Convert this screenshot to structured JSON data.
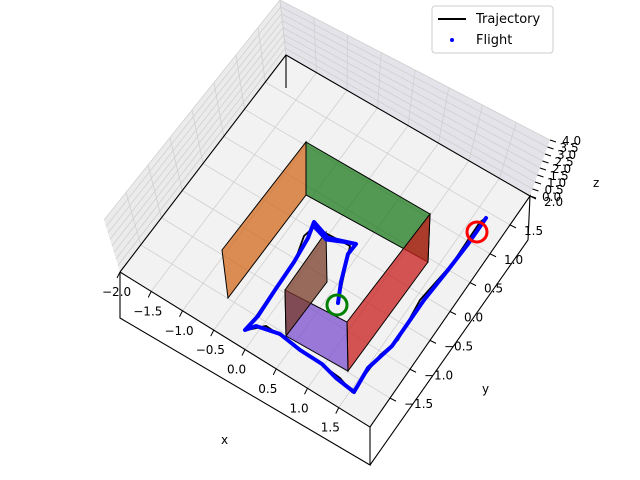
{
  "chart_data": {
    "type": "line3d",
    "title": "",
    "xlabel": "x",
    "ylabel": "y",
    "zlabel": "z",
    "xlim": [
      -2.0,
      2.0
    ],
    "ylim": [
      -2.0,
      2.0
    ],
    "zlim": [
      0.0,
      4.0
    ],
    "x_ticks": [
      "−2.0",
      "−1.5",
      "−1.0",
      "−0.5",
      "0.0",
      "0.5",
      "1.0",
      "1.5"
    ],
    "y_ticks": [
      "−1.5",
      "−1.0",
      "−0.5",
      "0.0",
      "0.5",
      "1.0",
      "1.5",
      "2.0"
    ],
    "z_ticks": [
      "0.0",
      "0.5",
      "1.0",
      "1.5",
      "2.0",
      "2.5",
      "3.0",
      "3.5",
      "4.0"
    ],
    "grid": true,
    "legend_position": "top-right",
    "legend": [
      {
        "label": "Trajectory",
        "style": "line",
        "color": "#000000"
      },
      {
        "label": "Flight",
        "style": "dot",
        "color": "#0000ff"
      }
    ],
    "start_marker": {
      "color": "#008000",
      "x": 0.0,
      "y": 0.0,
      "z": 0.0
    },
    "goal_marker": {
      "color": "#ff0000",
      "x": 1.5,
      "y": 1.5,
      "z": 0.9
    },
    "walls": [
      {
        "name": "orange-wall",
        "color": "#d2691e"
      },
      {
        "name": "green-wall",
        "color": "#1e7a1e"
      },
      {
        "name": "red-wall",
        "color": "#c81e1e"
      },
      {
        "name": "purple-wall",
        "color": "#7b4fcf"
      },
      {
        "name": "brown-wall",
        "color": "#7a3c2a"
      }
    ]
  }
}
